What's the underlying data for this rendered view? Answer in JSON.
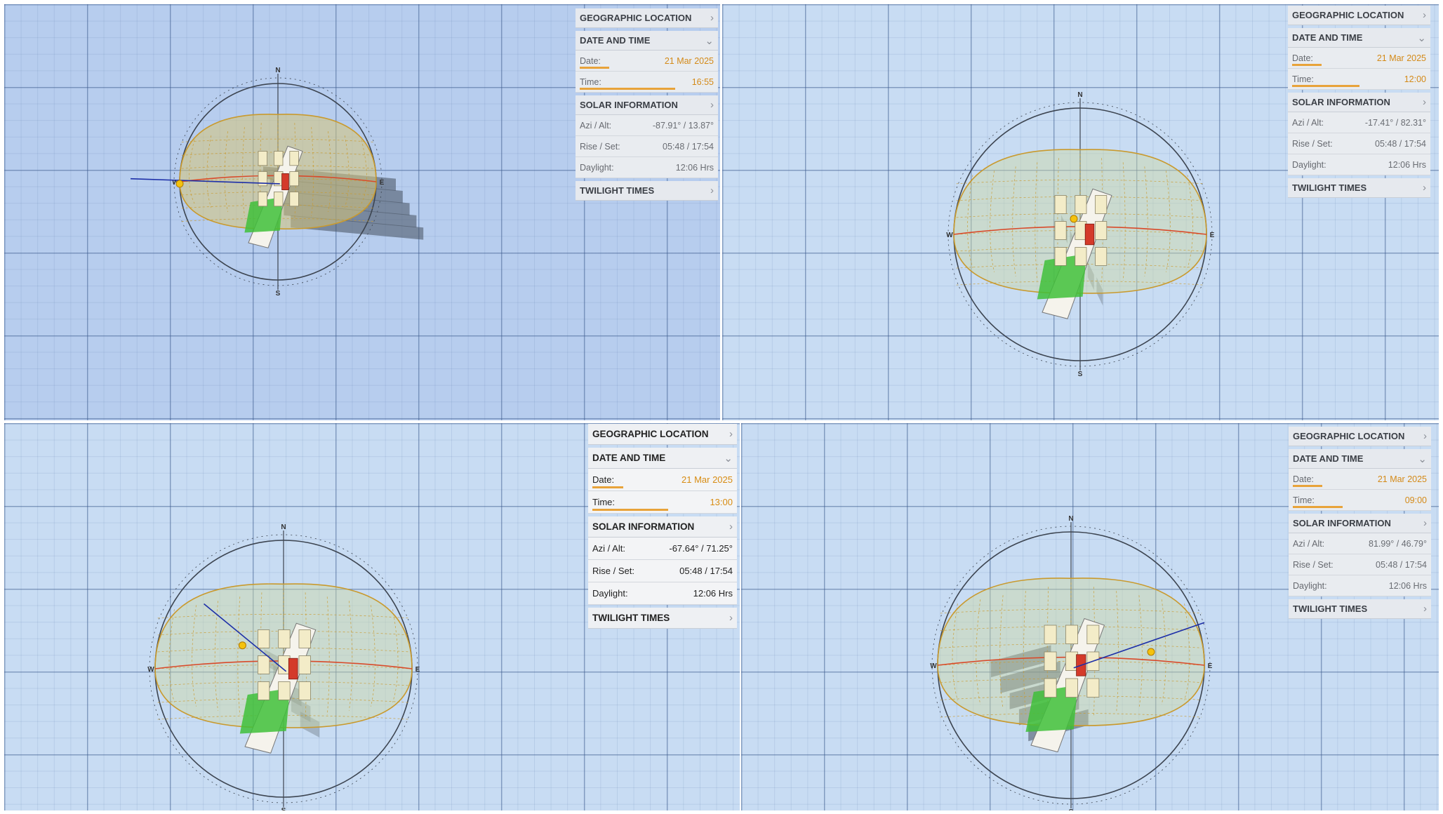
{
  "views": [
    {
      "panel": {
        "geographic_location": "GEOGRAPHIC LOCATION",
        "date_and_time": "DATE AND TIME",
        "date_label": "Date:",
        "date_value": "21 Mar 2025",
        "time_label": "Time:",
        "time_value": "16:55",
        "solar_information": "SOLAR INFORMATION",
        "azi_alt_label": "Azi / Alt:",
        "azi_alt_value": "-87.91° / 13.87°",
        "rise_set_label": "Rise / Set:",
        "rise_set_value": "05:48 / 17:54",
        "daylight_label": "Daylight:",
        "daylight_value": "12:06 Hrs",
        "twilight_times": "TWILIGHT TIMES",
        "time_progress": 0.71
      }
    },
    {
      "panel": {
        "geographic_location": "GEOGRAPHIC LOCATION",
        "date_and_time": "DATE AND TIME",
        "date_label": "Date:",
        "date_value": "21 Mar 2025",
        "time_label": "Time:",
        "time_value": "12:00",
        "solar_information": "SOLAR INFORMATION",
        "azi_alt_label": "Azi / Alt:",
        "azi_alt_value": "-17.41° / 82.31°",
        "rise_set_label": "Rise / Set:",
        "rise_set_value": "05:48 / 17:54",
        "daylight_label": "Daylight:",
        "daylight_value": "12:06 Hrs",
        "twilight_times": "TWILIGHT TIMES",
        "time_progress": 0.5
      }
    },
    {
      "panel": {
        "geographic_location": "GEOGRAPHIC LOCATION",
        "date_and_time": "DATE AND TIME",
        "date_label": "Date:",
        "date_value": "21 Mar 2025",
        "time_label": "Time:",
        "time_value": "13:00",
        "solar_information": "SOLAR INFORMATION",
        "azi_alt_label": "Azi / Alt:",
        "azi_alt_value": "-67.64° / 71.25°",
        "rise_set_label": "Rise / Set:",
        "rise_set_value": "05:48 / 17:54",
        "daylight_label": "Daylight:",
        "daylight_value": "12:06 Hrs",
        "twilight_times": "TWILIGHT TIMES",
        "time_progress": 0.54
      }
    },
    {
      "panel": {
        "geographic_location": "GEOGRAPHIC LOCATION",
        "date_and_time": "DATE AND TIME",
        "date_label": "Date:",
        "date_value": "21 Mar 2025",
        "time_label": "Time:",
        "time_value": "09:00",
        "solar_information": "SOLAR INFORMATION",
        "azi_alt_label": "Azi / Alt:",
        "azi_alt_value": "81.99° / 46.79°",
        "rise_set_label": "Rise / Set:",
        "rise_set_value": "05:48 / 17:54",
        "daylight_label": "Daylight:",
        "daylight_value": "12:06 Hrs",
        "twilight_times": "TWILIGHT TIMES",
        "time_progress": 0.37
      }
    }
  ],
  "compass": {
    "north": "N",
    "south": "S",
    "east": "E",
    "west": "W"
  },
  "icons": {
    "collapsed": "chevron-right-icon",
    "expanded": "chevron-down-icon"
  },
  "colors": {
    "accent": "#e8a33a",
    "sun_path": "#d94a2a",
    "sun": "#f4c20d",
    "sun_ray": "#1d2fa8",
    "dome": "#c99a2e",
    "site": "#3fbf3a",
    "highlight_building": "#d43a2a"
  }
}
